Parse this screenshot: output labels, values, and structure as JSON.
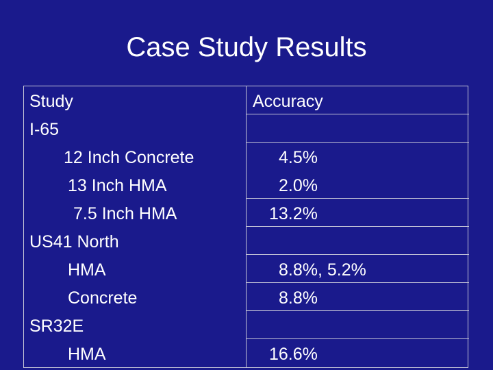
{
  "slide": {
    "title": "Case Study Results"
  },
  "table": {
    "headers": [
      "Study",
      "Accuracy"
    ],
    "rows": [
      {
        "study": "I-65",
        "accuracy": ""
      },
      {
        "study": "12 Inch Concrete",
        "accuracy": "4.5%"
      },
      {
        "study": "13 Inch HMA",
        "accuracy": "2.0%"
      },
      {
        "study": "7.5 Inch HMA",
        "accuracy": "13.2%"
      },
      {
        "study": "US41 North",
        "accuracy": ""
      },
      {
        "study": "HMA",
        "accuracy": "8.8%, 5.2%"
      },
      {
        "study": "Concrete",
        "accuracy": "8.8%"
      },
      {
        "study": "SR32E",
        "accuracy": ""
      },
      {
        "study": "HMA",
        "accuracy": "16.6%"
      }
    ]
  },
  "colors": {
    "background": "#1a1a8c",
    "text": "#ffffff",
    "grid": "#c8c8d8"
  }
}
